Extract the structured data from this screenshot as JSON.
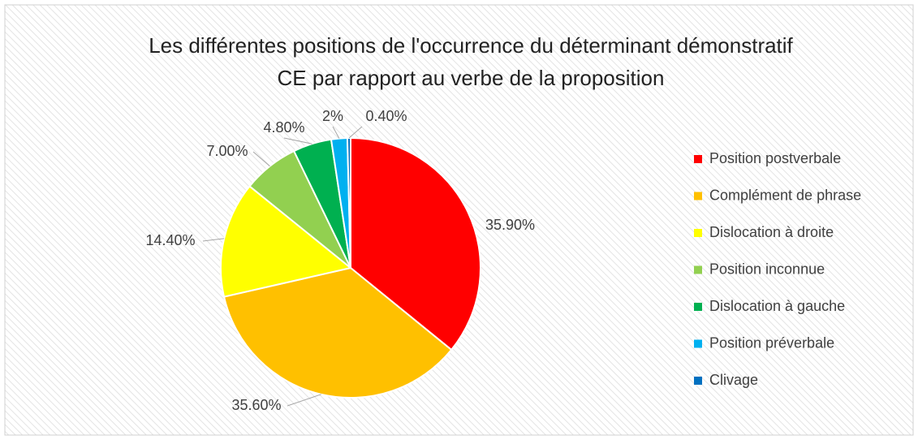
{
  "chart_data": {
    "type": "pie",
    "title": [
      "Les différentes positions de l'occurrence du déterminant démonstratif",
      "CE par rapport au verbe de la proposition"
    ],
    "categories": [
      "Position postverbale",
      "Complément de phrase",
      "Dislocation à droite",
      "Position inconnue",
      "Dislocation à gauche",
      "Position préverbale",
      "Clivage"
    ],
    "values": [
      35.9,
      35.6,
      14.4,
      7.0,
      4.8,
      2,
      0.4
    ],
    "value_labels": [
      "35.90%",
      "35.60%",
      "14.40%",
      "7.00%",
      "4.80%",
      "2%",
      "0.40%"
    ],
    "colors": [
      "#ff0000",
      "#ffc000",
      "#ffff00",
      "#92d050",
      "#00b050",
      "#00b0f0",
      "#0070c0"
    ],
    "legend": "right"
  }
}
